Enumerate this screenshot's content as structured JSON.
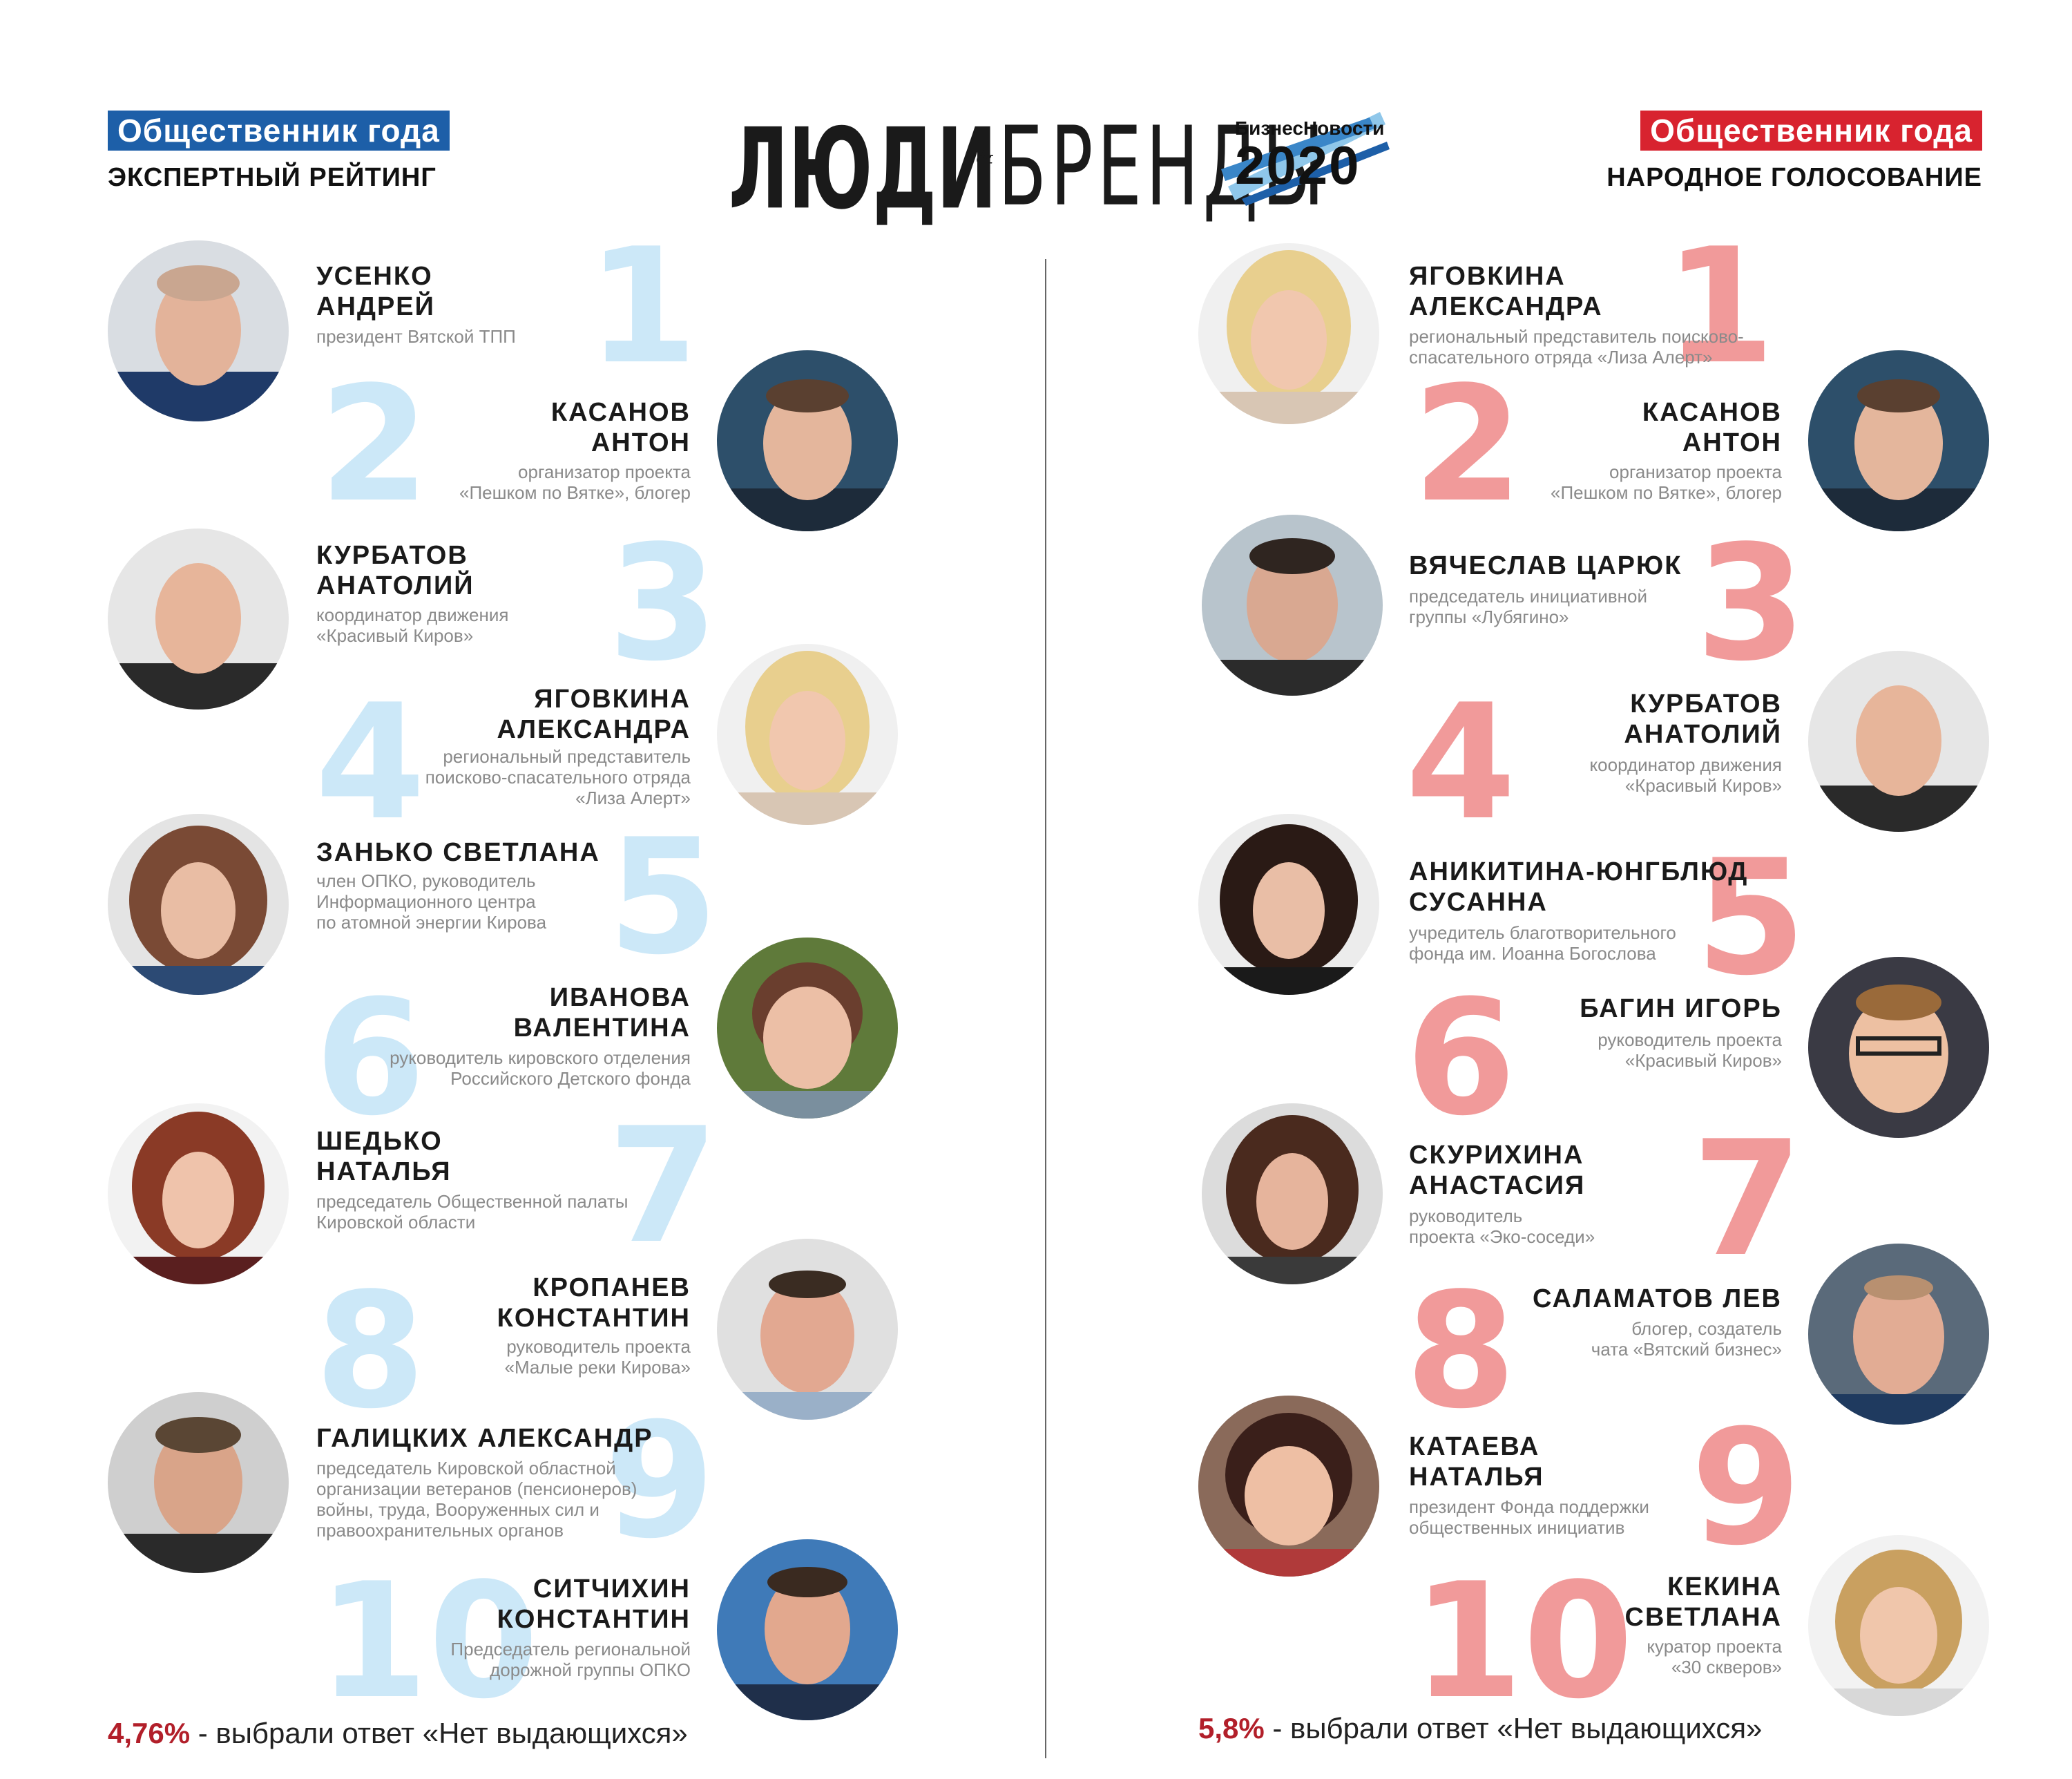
{
  "header": {
    "left_badge": "Общественник года",
    "left_subtitle": "ЭКСПЕРТНЫЙ РЕЙТИНГ",
    "right_badge": "Общественник года",
    "right_subtitle": "НАРОДНОЕ ГОЛОСОВАНИЕ",
    "logo_word1": "ЛЮДИ",
    "logo_amp": "&",
    "logo_word2": "БРЕНДЫ",
    "brand_name": "БизнесНовости",
    "year": "2020"
  },
  "colors": {
    "blue_badge": "#1d5fa8",
    "red_badge": "#d8232f",
    "expert_number": "#cce8f8",
    "vote_number": "#f19a9a",
    "percent": "#b21f2a"
  },
  "expert": {
    "entries": [
      {
        "rank": "1",
        "name": "УСЕНКО\nАНДРЕЙ",
        "desc": "президент Вятской ТПП"
      },
      {
        "rank": "2",
        "name": "КАСАНОВ\nАНТОН",
        "desc": "организатор проекта\n«Пешком по Вятке», блогер"
      },
      {
        "rank": "3",
        "name": "КУРБАТОВ\nАНАТОЛИЙ",
        "desc": "координатор движения\n«Красивый Киров»"
      },
      {
        "rank": "4",
        "name": "ЯГОВКИНА\nАЛЕКСАНДРА",
        "desc": "региональный представитель\nпоисково-спасательного отряда\n«Лиза Алерт»"
      },
      {
        "rank": "5",
        "name": "ЗАНЬКО СВЕТЛАНА",
        "desc": "член ОПКО, руководитель\nИнформационного центра\nпо атомной энергии Кирова"
      },
      {
        "rank": "6",
        "name": "ИВАНОВА\nВАЛЕНТИНА",
        "desc": "руководитель кировского отделения\nРоссийского Детского фонда"
      },
      {
        "rank": "7",
        "name": "ШЕДЬКО\nНАТАЛЬЯ",
        "desc": "председатель Общественной палаты\nКировской области"
      },
      {
        "rank": "8",
        "name": "КРОПАНЕВ\nКОНСТАНТИН",
        "desc": "руководитель проекта\n«Малые реки Кирова»"
      },
      {
        "rank": "9",
        "name": "ГАЛИЦКИХ АЛЕКСАНДР",
        "desc": "председатель Кировской областной\nорганизации ветеранов (пенсионеров)\nвойны, труда, Вооруженных сил и\nправоохранительных органов"
      },
      {
        "rank": "10",
        "name": "СИТЧИХИН\nКОНСТАНТИН",
        "desc": "Председатель региональной\nдорожной группы ОПКО"
      }
    ],
    "footer_percent": "4,76%",
    "footer_text": " - выбрали ответ «Нет выдающихся»"
  },
  "vote": {
    "entries": [
      {
        "rank": "1",
        "name": "ЯГОВКИНА\nАЛЕКСАНДРА",
        "desc": "региональный представитель поисково-\nспасательного отряда «Лиза Алерт»"
      },
      {
        "rank": "2",
        "name": "КАСАНОВ\nАНТОН",
        "desc": "организатор проекта\n«Пешком по Вятке», блогер"
      },
      {
        "rank": "3",
        "name": "ВЯЧЕСЛАВ ЦАРЮК",
        "desc": "председатель инициативной\nгруппы «Лубягино»"
      },
      {
        "rank": "4",
        "name": "КУРБАТОВ\nАНАТОЛИЙ",
        "desc": "координатор движения\n«Красивый Киров»"
      },
      {
        "rank": "5",
        "name": "АНИКИТИНА-ЮНГБЛЮД\nСУСАННА",
        "desc": "учредитель благотворительного\nфонда им. Иоанна Богослова"
      },
      {
        "rank": "6",
        "name": "БАГИН ИГОРЬ",
        "desc": "руководитель проекта\n«Красивый Киров»"
      },
      {
        "rank": "7",
        "name": "СКУРИХИНА\nАНАСТАСИЯ",
        "desc": "руководитель\nпроекта «Эко-соседи»"
      },
      {
        "rank": "8",
        "name": "САЛАМАТОВ ЛЕВ",
        "desc": "блогер, создатель\nчата «Вятский бизнес»"
      },
      {
        "rank": "9",
        "name": "КАТАЕВА\nНАТАЛЬЯ",
        "desc": "президент Фонда поддержки\nобщественных инициатив"
      },
      {
        "rank": "10",
        "name": "КЕКИНА\nСВЕТЛАНА",
        "desc": "куратор проекта\n«30 скверов»"
      }
    ],
    "footer_percent": "5,8%",
    "footer_text": " - выбрали ответ «Нет выдающихся»"
  }
}
